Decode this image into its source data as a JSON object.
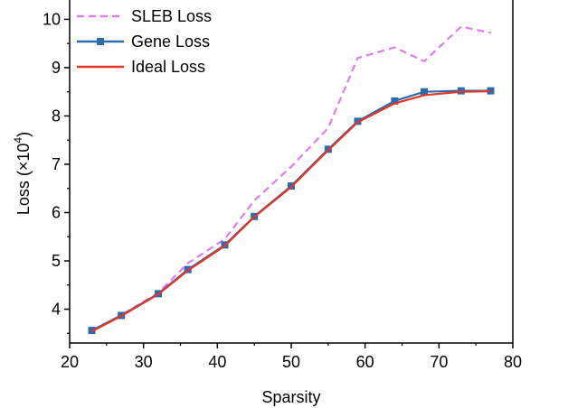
{
  "chart_data": {
    "type": "line",
    "xlabel": "Sparsity",
    "ylabel": "Loss (×10",
    "ylabel_exp": "4",
    "ylabel_close": ")",
    "xlim": [
      20,
      80
    ],
    "ylim": [
      3.3,
      10.4
    ],
    "xticks": [
      20,
      30,
      40,
      50,
      60,
      70,
      80
    ],
    "yticks": [
      4,
      5,
      6,
      7,
      8,
      9,
      10
    ],
    "grid": false,
    "legend_position": "top-left",
    "series": [
      {
        "name": "SLEB Loss",
        "color": "#e07cf0",
        "style": "dashed",
        "marker": "none",
        "x": [
          23,
          27,
          32,
          36,
          41,
          45,
          50,
          55,
          59,
          64,
          68,
          73,
          77
        ],
        "y": [
          3.56,
          3.88,
          4.34,
          4.95,
          5.45,
          6.25,
          6.95,
          7.75,
          9.2,
          9.42,
          9.13,
          9.85,
          9.72
        ]
      },
      {
        "name": "Gene Loss",
        "color": "#2e6bad",
        "style": "solid",
        "marker": "square",
        "x": [
          23,
          27,
          32,
          36,
          41,
          45,
          50,
          55,
          59,
          64,
          68,
          73,
          77
        ],
        "y": [
          3.56,
          3.87,
          4.32,
          4.82,
          5.33,
          5.92,
          6.55,
          7.31,
          7.89,
          8.31,
          8.5,
          8.52,
          8.52
        ]
      },
      {
        "name": "Ideal Loss",
        "color": "#e0372a",
        "style": "solid",
        "marker": "none",
        "x": [
          23,
          27,
          32,
          36,
          41,
          45,
          50,
          55,
          59,
          64,
          68,
          73,
          77
        ],
        "y": [
          3.54,
          3.86,
          4.31,
          4.8,
          5.31,
          5.91,
          6.53,
          7.29,
          7.87,
          8.26,
          8.43,
          8.5,
          8.51
        ]
      }
    ]
  }
}
